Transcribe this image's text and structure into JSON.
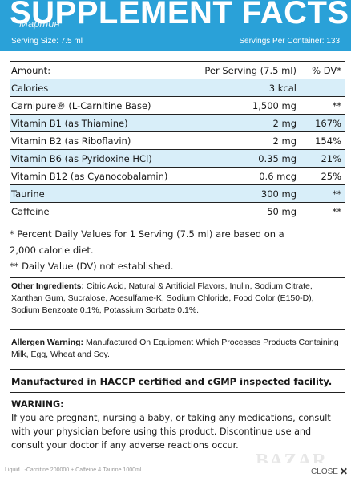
{
  "header": {
    "title": "SUPPLEMENT FACTS",
    "watermark_top": "Мартин",
    "serving_size": "Serving Size: 7.5 ml",
    "servings_per_container": "Servings Per Container: 133"
  },
  "table": {
    "header": {
      "name": "Amount:",
      "amount": "Per Serving (7.5 ml)",
      "dv": "% DV*"
    },
    "rows": [
      {
        "name": "Calories",
        "amount": "3 kcal",
        "dv": ""
      },
      {
        "name": "Carnipure® (L-Carnitine Base)",
        "amount": "1,500 mg",
        "dv": "**"
      },
      {
        "name": "Vitamin B1 (as Thiamine)",
        "amount": "2 mg",
        "dv": "167%"
      },
      {
        "name": "Vitamin B2 (as Riboflavin)",
        "amount": "2 mg",
        "dv": "154%"
      },
      {
        "name": "Vitamin B6 (as Pyridoxine HCl)",
        "amount": "0.35 mg",
        "dv": "21%"
      },
      {
        "name": "Vitamin B12 (as Cyanocobalamin)",
        "amount": "0.6 mcg",
        "dv": "25%"
      },
      {
        "name": "Taurine",
        "amount": "300 mg",
        "dv": "**"
      },
      {
        "name": "Caffeine",
        "amount": "50 mg",
        "dv": "**"
      }
    ]
  },
  "footnotes": {
    "line1": "* Percent Daily Values for 1 Serving (7.5 ml) are based on a",
    "line2": "2,000 calorie diet.",
    "line3": "** Daily Value (DV) not established."
  },
  "ingredients": {
    "label": "Other Ingredients:",
    "text": " Citric Acid, Natural & Artificial Flavors, Inulin, Sodium Citrate, Xanthan Gum, Sucralose, Acesulfame-K, Sodium Chloride, Food Color (E150-D), Sodium Benzoate 0.1%, Potassium Sorbate 0.1%."
  },
  "allergen": {
    "label": "Allergen Warning:",
    "text": " Manufactured On Equipment Which Processes Products Containing Milk, Egg, Wheat and Soy."
  },
  "haccp": "Manufactured in HACCP certified and cGMP inspected facility.",
  "warning": {
    "title": "WARNING:",
    "text": "If you are pregnant, nursing a baby, or taking any medications, consult with your physician before using this product. Discontinue use and consult your doctor if any adverse reactions occur."
  },
  "footer": {
    "product_line": "Liquid L-Carnitine 200000 + Caffeine & Taurine 1000ml.",
    "close_label": "CLOSE",
    "close_icon": "✕",
    "site_watermark": "BAZAR"
  },
  "colors": {
    "header_blue": "#2aa1d8",
    "row_alt": "#d8eef9"
  }
}
